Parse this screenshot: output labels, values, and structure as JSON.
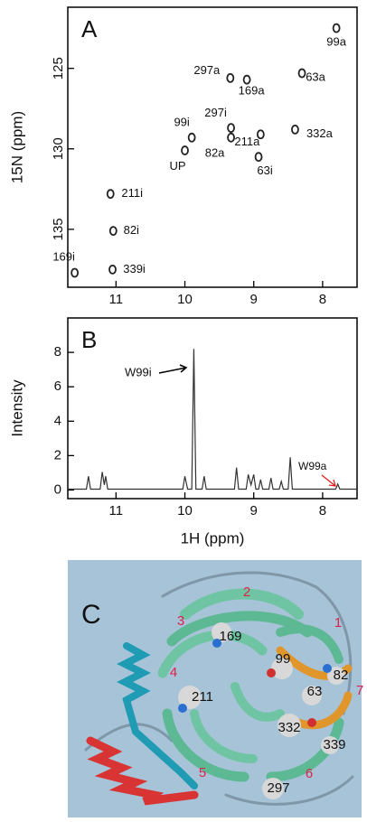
{
  "chart_data": [
    {
      "type": "scatter",
      "panel_label": "A",
      "y_label": "15N (ppm)",
      "x": [
        7.8,
        9.34,
        9.1,
        8.3,
        9.33,
        9.9,
        9.33,
        8.4,
        8.9,
        8.93,
        10.0,
        11.08,
        11.04,
        11.6,
        11.05
      ],
      "values": [
        122.5,
        125.6,
        125.7,
        125.3,
        128.7,
        129.3,
        129.3,
        128.8,
        129.1,
        130.5,
        130.1,
        132.8,
        135.1,
        137.7,
        137.5
      ],
      "point_labels": [
        "99a",
        "297a",
        "169a",
        "63a",
        "297i",
        "99i",
        "82a",
        "332a",
        "211a",
        "63i",
        "UP",
        "211i",
        "82i",
        "169i",
        "339i"
      ],
      "color": "#222222",
      "xlim": [
        11.7,
        7.5
      ],
      "xticks": [
        11,
        10,
        9,
        8
      ],
      "ylim": [
        138.6,
        121.2
      ],
      "yticks": [
        125,
        130,
        135
      ]
    },
    {
      "type": "line",
      "panel_label": "B",
      "x_label": "1H (ppm)",
      "y_label": "Intensity",
      "x": [
        11.7,
        11.43,
        11.4,
        11.37,
        11.23,
        11.2,
        11.17,
        11.15,
        11.12,
        10.03,
        10.0,
        9.96,
        9.9,
        9.87,
        9.84,
        9.75,
        9.72,
        9.69,
        9.28,
        9.25,
        9.22,
        9.11,
        9.08,
        9.04,
        9.0,
        8.97,
        8.93,
        8.9,
        8.87,
        8.78,
        8.75,
        8.72,
        8.63,
        8.6,
        8.57,
        8.5,
        8.47,
        8.44,
        7.81,
        7.78,
        7.75,
        7.5
      ],
      "values": [
        0.05,
        0.05,
        0.8,
        0.05,
        0.05,
        1.05,
        0.3,
        0.8,
        0.05,
        0.05,
        0.8,
        0.05,
        0.05,
        8.2,
        0.05,
        0.05,
        0.8,
        0.05,
        0.05,
        1.3,
        0.05,
        0.05,
        0.9,
        0.3,
        0.9,
        0.05,
        0.05,
        0.6,
        0.05,
        0.05,
        0.7,
        0.05,
        0.05,
        0.5,
        0.05,
        0.05,
        1.9,
        0.05,
        0.05,
        0.35,
        0.05,
        0.05
      ],
      "color": "#333333",
      "annotations": [
        "W99i",
        "W99a"
      ],
      "xlim": [
        11.7,
        7.5
      ],
      "xticks": [
        11,
        10,
        9,
        8
      ],
      "ylim": [
        -0.5,
        10
      ],
      "yticks": [
        0,
        2,
        4,
        6,
        8
      ]
    }
  ],
  "structure": {
    "panel_label": "C",
    "regions": [
      "1",
      "2",
      "3",
      "4",
      "5",
      "6",
      "7"
    ],
    "residues": [
      "169",
      "99",
      "82",
      "63",
      "211",
      "332",
      "339",
      "297"
    ]
  }
}
